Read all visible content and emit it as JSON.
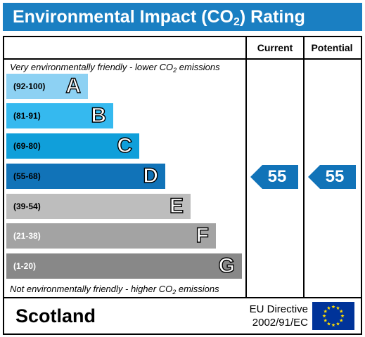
{
  "title": {
    "text": "Environmental Impact (CO",
    "sub": "2",
    "suffix": ") Rating"
  },
  "columns": {
    "current": "Current",
    "potential": "Potential"
  },
  "notes": {
    "top_pre": "Very environmentally friendly - lower CO",
    "top_sub": "2",
    "top_post": " emissions",
    "bottom_pre": "Not environmentally friendly - higher CO",
    "bottom_sub": "2",
    "bottom_post": " emissions"
  },
  "bands": [
    {
      "range": "(92-100)",
      "letter": "A",
      "color": "#8dd1f3",
      "range_color": "#000000"
    },
    {
      "range": "(81-91)",
      "letter": "B",
      "color": "#35b9ef",
      "range_color": "#000000"
    },
    {
      "range": "(69-80)",
      "letter": "C",
      "color": "#109fda",
      "range_color": "#000000"
    },
    {
      "range": "(55-68)",
      "letter": "D",
      "color": "#1173b8",
      "range_color": "#000000"
    },
    {
      "range": "(39-54)",
      "letter": "E",
      "color": "#bdbdbd",
      "range_color": "#000000"
    },
    {
      "range": "(21-38)",
      "letter": "F",
      "color": "#a3a3a3",
      "range_color": "#ffffff"
    },
    {
      "range": "(1-20)",
      "letter": "G",
      "color": "#888888",
      "range_color": "#ffffff"
    }
  ],
  "ratings": {
    "current": "55",
    "potential": "55",
    "band_index": 3,
    "arrow_color": "#1173b8"
  },
  "footer": {
    "country": "Scotland",
    "directive_line1": "EU Directive",
    "directive_line2": "2002/91/EC"
  },
  "colors": {
    "title_bar": "#1a7fc2",
    "eu_flag": "#003399",
    "eu_stars": "#ffdd00"
  }
}
